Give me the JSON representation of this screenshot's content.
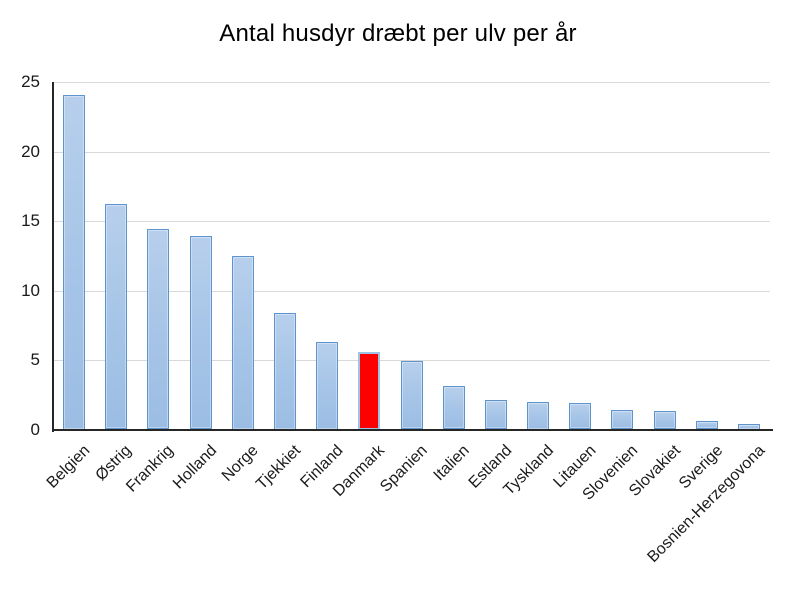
{
  "chart_data": {
    "type": "bar",
    "title": "Antal husdyr dræbt per ulv per år",
    "categories": [
      "Belgien",
      "Østrig",
      "Frankrig",
      "Holland",
      "Norge",
      "Tjekkiet",
      "Finland",
      "Danmark",
      "Spanien",
      "Italien",
      "Estland",
      "Tyskland",
      "Litauen",
      "Slovenien",
      "Slovakiet",
      "Sverige",
      "Bosnien-Herzegovona"
    ],
    "values": [
      24.1,
      16.2,
      14.4,
      13.9,
      12.5,
      8.4,
      6.3,
      5.6,
      4.9,
      3.1,
      2.1,
      2.0,
      1.9,
      1.4,
      1.3,
      0.6,
      0.4
    ],
    "highlight_category": "Danmark",
    "highlight_index": 7,
    "xlabel": "",
    "ylabel": "",
    "ylim": [
      0,
      25
    ],
    "yticks": [
      0,
      5,
      10,
      15,
      20,
      25
    ],
    "grid": true,
    "legend": false,
    "colors": {
      "bar_fill": "#a5c4e7",
      "bar_border": "#5e94cd",
      "highlight_fill": "#ff0000",
      "highlight_border": "#9dc3e6",
      "gridline": "#d9d9d9",
      "axis_line": "#262626",
      "text": "#1a1a1a",
      "background": "#ffffff"
    }
  }
}
